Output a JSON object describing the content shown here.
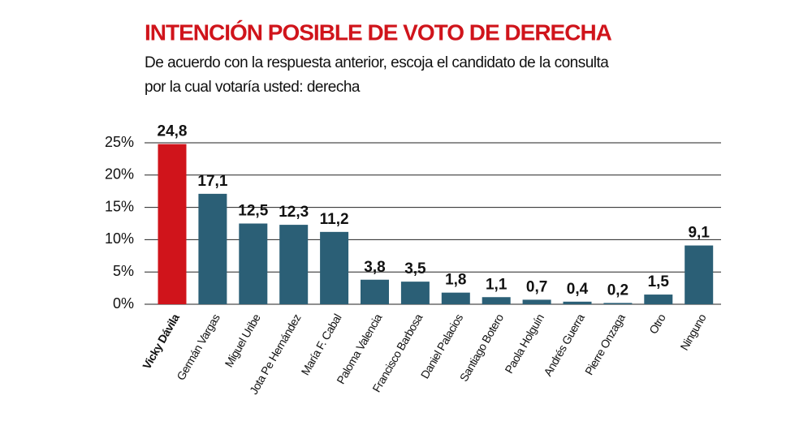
{
  "chart_data": {
    "type": "bar",
    "title": "INTENCIÓN POSIBLE DE VOTO DE DERECHA",
    "subtitle": [
      "De acuerdo con la respuesta anterior, escoja el candidato de la consulta",
      "por la cual votaría usted: derecha"
    ],
    "categories": [
      "Vicky Dávila",
      "Germán Vargas",
      "Miguel Uribe",
      "Jota Pe Hernández",
      "María F. Cabal",
      "Paloma Valencia",
      "Francisco Barbosa",
      "Daniel Palacios",
      "Santiago Botero",
      "Paola Holguín",
      "Andrés Guerra",
      "Pierre Onzaga",
      "Otro",
      "Ninguno"
    ],
    "values": [
      24.8,
      17.1,
      12.5,
      12.3,
      11.2,
      3.8,
      3.5,
      1.8,
      1.1,
      0.7,
      0.4,
      0.2,
      1.5,
      9.1
    ],
    "value_labels": [
      "24,8",
      "17,1",
      "12,5",
      "12,3",
      "11,2",
      "3,8",
      "3,5",
      "1,8",
      "1,1",
      "0,7",
      "0,4",
      "0,2",
      "1,5",
      "9,1"
    ],
    "colors": [
      "#d0141b",
      "#2b5f76",
      "#2b5f76",
      "#2b5f76",
      "#2b5f76",
      "#2b5f76",
      "#2b5f76",
      "#2b5f76",
      "#2b5f76",
      "#2b5f76",
      "#2b5f76",
      "#2b5f76",
      "#2b5f76",
      "#2b5f76"
    ],
    "ylim": [
      0,
      25
    ],
    "yticks": [
      {
        "value": 0,
        "label": "0%"
      },
      {
        "value": 5,
        "label": "5%"
      },
      {
        "value": 10,
        "label": "10%"
      },
      {
        "value": 15,
        "label": "15%"
      },
      {
        "value": 20,
        "label": "20%"
      },
      {
        "value": 25,
        "label": "25%"
      }
    ],
    "grid": true
  }
}
